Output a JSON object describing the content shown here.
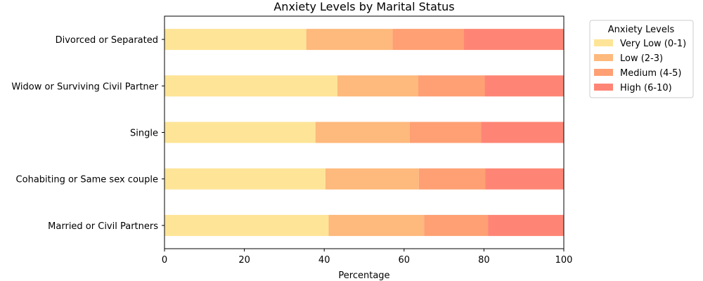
{
  "chart_data": {
    "type": "bar",
    "orientation": "horizontal",
    "stacked": true,
    "title": "Anxiety Levels by Marital Status",
    "xlabel": "Percentage",
    "ylabel": "",
    "xlim": [
      0,
      100
    ],
    "xticks": [
      "0",
      "20",
      "40",
      "60",
      "80",
      "100"
    ],
    "categories": [
      "Married or Civil Partners",
      "Cohabiting or Same sex couple",
      "Single",
      "Widow or Surviving Civil Partner",
      "Divorced or Separated"
    ],
    "series": [
      {
        "name": "Very Low (0-1)",
        "color": "#fee497",
        "values": [
          41.1,
          40.3,
          37.8,
          43.3,
          35.5
        ]
      },
      {
        "name": "Low (2-3)",
        "color": "#feb97c",
        "values": [
          23.9,
          23.4,
          23.6,
          20.2,
          21.6
        ]
      },
      {
        "name": "Medium (4-5)",
        "color": "#fea073",
        "values": [
          16.0,
          16.6,
          17.9,
          16.7,
          17.9
        ]
      },
      {
        "name": "High (6-10)",
        "color": "#fe8575",
        "values": [
          19.0,
          19.7,
          20.7,
          19.8,
          25.0
        ]
      }
    ],
    "legend": {
      "title": "Anxiety Levels",
      "placement": "outside-top-right"
    },
    "grid": false
  }
}
